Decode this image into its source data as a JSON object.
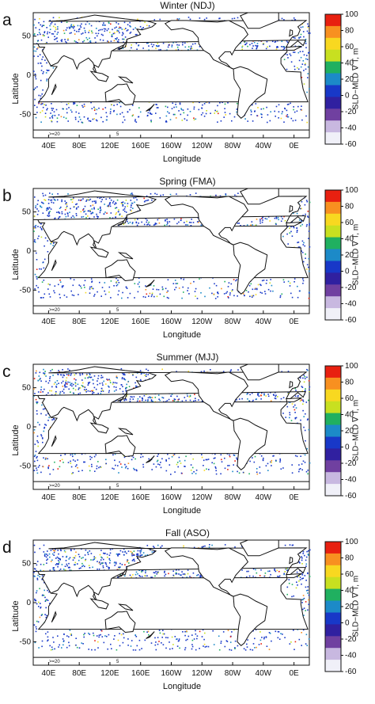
{
  "panels": [
    {
      "letter": "a",
      "title": "Winter (NDJ)"
    },
    {
      "letter": "b",
      "title": "Spring (FMA)"
    },
    {
      "letter": "c",
      "title": "Summer (MJJ)"
    },
    {
      "letter": "d",
      "title": "Fall (ASO)"
    }
  ],
  "axes": {
    "ylabel": "Latitude",
    "xlabel": "Longitude",
    "yticks": [
      "50",
      "0",
      "-50"
    ],
    "xticks": [
      "40E",
      "80E",
      "120E",
      "160E",
      "160W",
      "120W",
      "80W",
      "40W",
      "0E"
    ]
  },
  "colorbar": {
    "label": "SLD−MLD",
    "label_sub": "∇",
    "label_unit": "T, m",
    "ticks": [
      "100",
      "80",
      "60",
      "40",
      "20",
      "0",
      "-20",
      "-40",
      "-60"
    ],
    "range": [
      -60,
      100
    ],
    "colors": [
      "#f0f0f8",
      "#c8b8e0",
      "#7040a0",
      "#3020a0",
      "#1838c8",
      "#1c8ac8",
      "#20b060",
      "#c8e020",
      "#f8d820",
      "#f89020",
      "#e82010"
    ]
  },
  "map_notes": {
    "left": ">=20",
    "right": "5"
  },
  "colors": {
    "coast": "#111111",
    "dot_main": "#2040c8"
  }
}
